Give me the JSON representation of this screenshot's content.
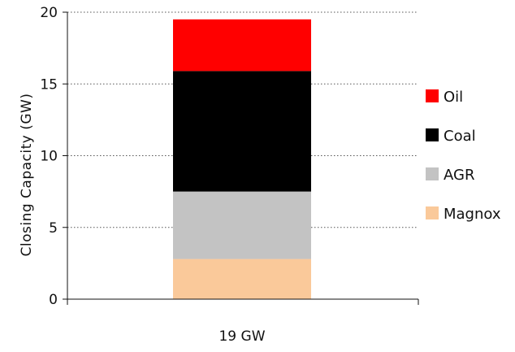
{
  "chart_data": {
    "type": "bar",
    "stacked": true,
    "categories": [
      "19 GW"
    ],
    "ylabel": "Closing Capacity (GW)",
    "xlabel": "",
    "ylim": [
      0,
      20
    ],
    "yticks": [
      0,
      5,
      10,
      15,
      20
    ],
    "grid": "horizontal dotted",
    "legend_position": "right",
    "series": [
      {
        "name": "Magnox",
        "values": [
          2.8
        ],
        "color": "#FAC99A"
      },
      {
        "name": "AGR",
        "values": [
          4.7
        ],
        "color": "#C3C3C3"
      },
      {
        "name": "Coal",
        "values": [
          8.4
        ],
        "color": "#000000"
      },
      {
        "name": "Oil",
        "values": [
          3.6
        ],
        "color": "#FF0000"
      }
    ],
    "legend_order": [
      "Oil",
      "Coal",
      "AGR",
      "Magnox"
    ]
  }
}
